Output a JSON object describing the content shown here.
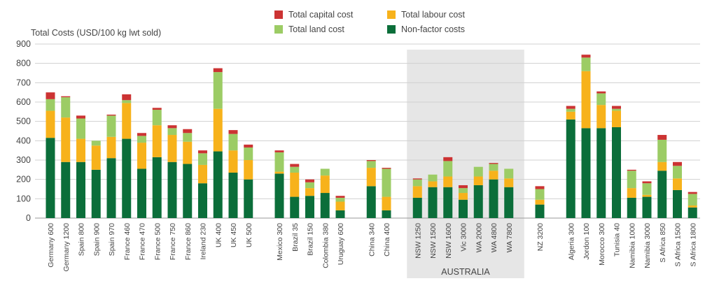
{
  "chart_data": {
    "type": "bar",
    "stacked": true,
    "ylabel": "Total Costs (USD/100 kg lwt sold)",
    "ylim": [
      0,
      900
    ],
    "yticks": [
      0,
      100,
      200,
      300,
      400,
      500,
      600,
      700,
      800,
      900
    ],
    "grid": true,
    "legend_position": "top",
    "highlight_group": {
      "label": "AUSTRALIA",
      "from": "NSW 1250",
      "to": "WA 7800"
    },
    "groups": [
      [
        "Germany 600",
        "Germany 1200",
        "Spain 800",
        "Spain 900",
        "Spain 970",
        "France 460",
        "France 470",
        "France 500",
        "France 750",
        "France 860",
        "Ireland 230",
        "UK 400",
        "UK 450",
        "UK 500"
      ],
      [
        "Mexico 300",
        "Brazil 35",
        "Brazil 150",
        "Colombia 380",
        "Uruguay 600"
      ],
      [
        "China 340",
        "China 400"
      ],
      [
        "NSW 1250",
        "NSW 1500",
        "NSW 1600",
        "Vic 3000",
        "WA 2000",
        "WA 4800",
        "WA 7800"
      ],
      [
        "NZ 3200"
      ],
      [
        "Algeria 300",
        "Jordon 100",
        "Morocco 300",
        "Tunisia 40",
        "Namibia 1000",
        "Namibia 3000",
        "S Africa 850",
        "S Africa 1500",
        "S Africa 1800"
      ]
    ],
    "categories": [
      "Germany 600",
      "Germany 1200",
      "Spain 800",
      "Spain 900",
      "Spain 970",
      "France 460",
      "France 470",
      "France 500",
      "France 750",
      "France 860",
      "Ireland 230",
      "UK 400",
      "UK 450",
      "UK 500",
      "Mexico 300",
      "Brazil 35",
      "Brazil 150",
      "Colombia 380",
      "Uruguay 600",
      "China 340",
      "China 400",
      "NSW 1250",
      "NSW 1500",
      "NSW 1600",
      "Vic 3000",
      "WA 2000",
      "WA 4800",
      "WA 7800",
      "NZ 3200",
      "Algeria 300",
      "Jordon 100",
      "Morocco 300",
      "Tunisia 40",
      "Namibia 1000",
      "Namibia 3000",
      "S Africa 850",
      "S Africa 1500",
      "S Africa 1800"
    ],
    "series": [
      {
        "name": "Non-factor costs",
        "color": "#0b6e3a",
        "values": [
          415,
          290,
          290,
          250,
          310,
          410,
          255,
          315,
          290,
          280,
          180,
          345,
          235,
          200,
          230,
          110,
          115,
          130,
          40,
          165,
          40,
          105,
          160,
          160,
          95,
          170,
          200,
          160,
          70,
          510,
          465,
          465,
          470,
          105,
          110,
          245,
          145,
          55
        ]
      },
      {
        "name": "Total labour cost",
        "color": "#f7b21b",
        "values": [
          140,
          230,
          120,
          125,
          110,
          185,
          135,
          165,
          140,
          115,
          95,
          220,
          115,
          100,
          10,
          125,
          40,
          90,
          45,
          95,
          70,
          60,
          30,
          55,
          35,
          45,
          45,
          45,
          25,
          40,
          295,
          120,
          85,
          50,
          10,
          45,
          60,
          10
        ]
      },
      {
        "name": "Total land cost",
        "color": "#9ccc65",
        "values": [
          60,
          105,
          105,
          25,
          110,
          15,
          35,
          80,
          35,
          45,
          60,
          190,
          85,
          65,
          100,
          30,
          30,
          35,
          20,
          35,
          145,
          35,
          35,
          80,
          25,
          50,
          35,
          50,
          55,
          15,
          70,
          60,
          10,
          90,
          60,
          115,
          65,
          60
        ]
      },
      {
        "name": "Total capital cost",
        "color": "#cc3333",
        "values": [
          35,
          5,
          15,
          0,
          5,
          30,
          15,
          10,
          15,
          20,
          15,
          20,
          20,
          15,
          10,
          15,
          15,
          0,
          10,
          5,
          5,
          5,
          0,
          20,
          15,
          0,
          5,
          0,
          15,
          15,
          15,
          10,
          15,
          5,
          10,
          25,
          20,
          10
        ]
      }
    ]
  },
  "legend": {
    "items": [
      {
        "label": "Total capital cost",
        "color": "#cc3333"
      },
      {
        "label": "Total labour cost",
        "color": "#f7b21b"
      },
      {
        "label": "Total land cost",
        "color": "#9ccc65"
      },
      {
        "label": "Non-factor costs",
        "color": "#0b6e3a"
      }
    ]
  }
}
